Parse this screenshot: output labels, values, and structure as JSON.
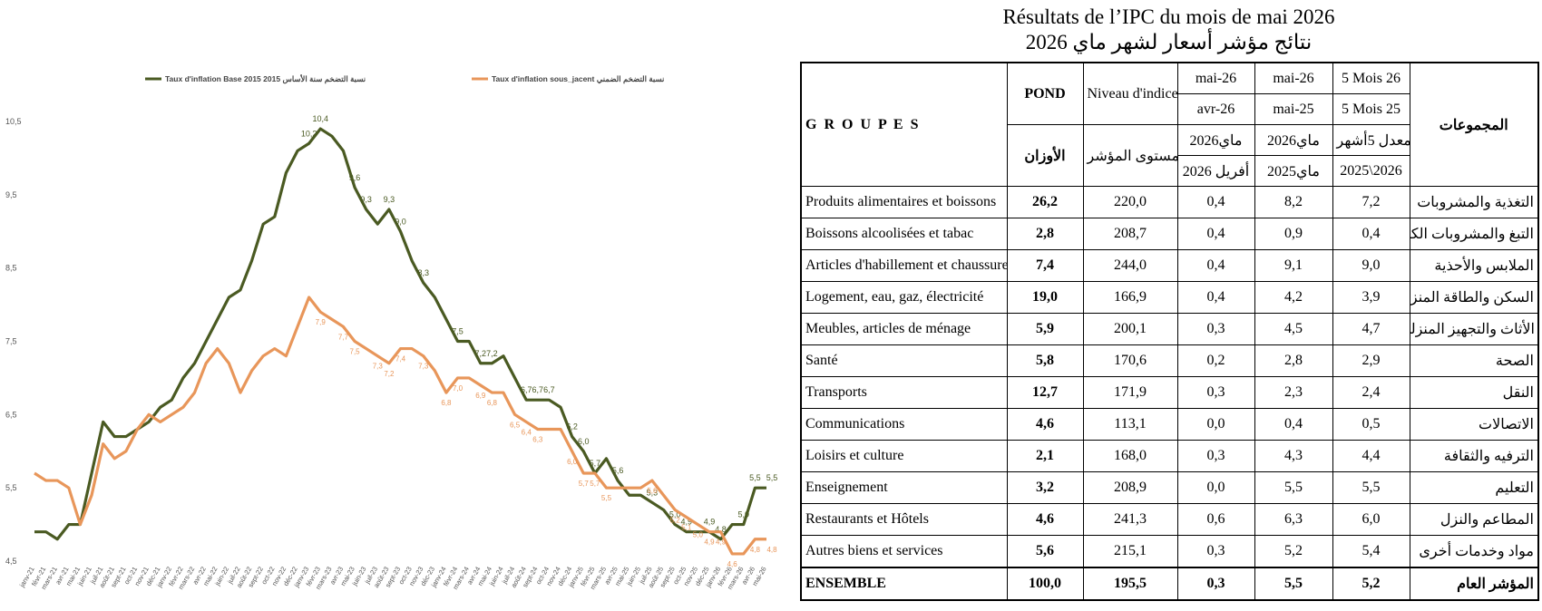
{
  "chart_data": {
    "type": "line",
    "categories": [
      "janv-21",
      "févr-21",
      "mars-21",
      "avr-21",
      "mai-21",
      "juin-21",
      "juil-21",
      "août-21",
      "sept-21",
      "oct-21",
      "nov-21",
      "déc-21",
      "janv-22",
      "févr-22",
      "mars-22",
      "avr-22",
      "mai-22",
      "juin-22",
      "juil-22",
      "août-22",
      "sept-22",
      "oct-22",
      "nov-22",
      "déc-22",
      "janv-23",
      "févr-23",
      "mars-23",
      "avr-23",
      "mai-23",
      "juin-23",
      "juil-23",
      "août-23",
      "sept-23",
      "oct-23",
      "nov-23",
      "déc-23",
      "janv-24",
      "févr-24",
      "mars-24",
      "avr-24",
      "mai-24",
      "juin-24",
      "juil-24",
      "août-24",
      "sept-24",
      "oct-24",
      "nov-24",
      "déc-24",
      "janv-25",
      "févr-25",
      "mars-25",
      "avr-25",
      "mai-25",
      "juin-25",
      "juil-25",
      "août-25",
      "sept-25",
      "oct-25",
      "nov-25",
      "déc-25",
      "janv-26",
      "févr-26",
      "mars-26",
      "avr-26",
      "mai-26"
    ],
    "series": [
      {
        "name": "Taux d'inflation Base 2015 نسبة التضخم سنة الأساس 2015",
        "color": "#4a5a22",
        "values": [
          4.9,
          4.9,
          4.8,
          5.0,
          5.0,
          5.7,
          6.4,
          6.2,
          6.2,
          6.3,
          6.4,
          6.6,
          6.7,
          7.0,
          7.2,
          7.5,
          7.8,
          8.1,
          8.2,
          8.6,
          9.1,
          9.2,
          9.8,
          10.1,
          10.2,
          10.4,
          10.3,
          10.1,
          9.6,
          9.3,
          9.1,
          9.3,
          9.0,
          8.6,
          8.3,
          8.1,
          7.8,
          7.5,
          7.5,
          7.2,
          7.2,
          7.3,
          7.0,
          6.7,
          6.7,
          6.7,
          6.6,
          6.2,
          6.0,
          5.7,
          5.9,
          5.6,
          5.4,
          5.4,
          5.3,
          5.2,
          5.0,
          4.9,
          4.9,
          4.9,
          4.8,
          5.0,
          5.0,
          5.5,
          5.5
        ],
        "value_labels": [
          null,
          null,
          null,
          null,
          null,
          null,
          null,
          null,
          null,
          null,
          null,
          null,
          null,
          null,
          null,
          null,
          null,
          null,
          null,
          null,
          null,
          null,
          null,
          null,
          "10,2",
          "10,4",
          null,
          null,
          "9,6",
          "9,3",
          null,
          "9,3",
          "9,0",
          null,
          "8,3",
          null,
          null,
          "7,5",
          null,
          "7,2",
          "7,2",
          null,
          null,
          "6,7",
          "6,7",
          "6,7",
          null,
          "6,2",
          "6,0",
          "5,7",
          null,
          "5,6",
          null,
          null,
          "5,3",
          null,
          "5,0",
          "4,9",
          null,
          "4,9",
          "4,8",
          null,
          "5,0",
          "5,5",
          "5,5"
        ]
      },
      {
        "name": "Taux d'inflation sous_jacent نسبة التضخم الضمني",
        "color": "#e8965a",
        "values": [
          5.7,
          5.6,
          5.6,
          5.5,
          5.0,
          5.4,
          6.1,
          5.9,
          6.0,
          6.3,
          6.5,
          6.4,
          6.5,
          6.6,
          6.8,
          7.2,
          7.4,
          7.2,
          6.8,
          7.1,
          7.3,
          7.4,
          7.3,
          7.7,
          8.1,
          7.9,
          7.8,
          7.7,
          7.5,
          7.4,
          7.3,
          7.2,
          7.4,
          7.4,
          7.3,
          7.1,
          6.8,
          7.0,
          7.0,
          6.9,
          6.8,
          6.8,
          6.5,
          6.4,
          6.3,
          6.3,
          6.3,
          6.0,
          5.7,
          5.7,
          5.5,
          5.5,
          5.5,
          5.5,
          5.6,
          5.4,
          5.2,
          5.1,
          5.0,
          4.9,
          4.9,
          4.6,
          4.6,
          4.8,
          4.8
        ],
        "value_labels": [
          null,
          null,
          null,
          null,
          null,
          null,
          null,
          null,
          null,
          null,
          null,
          null,
          null,
          null,
          null,
          null,
          null,
          null,
          null,
          null,
          null,
          null,
          null,
          null,
          null,
          "7,9",
          null,
          "7,7",
          "7,5",
          null,
          "7,3",
          "7,2",
          "7,4",
          null,
          "7,3",
          null,
          "6,8",
          "7,0",
          null,
          "6,9",
          "6,8",
          null,
          "6,5",
          "6,4",
          "6,3",
          null,
          null,
          "6,0",
          "5,7",
          "5,7",
          "5,5",
          null,
          null,
          null,
          "5,6",
          null,
          "5,2",
          "5,1",
          "5,0",
          "4,9",
          "4,9",
          "4,6",
          null,
          "4,8",
          "4,8"
        ]
      }
    ],
    "ylim": [
      4.5,
      10.5
    ],
    "yticks": [
      {
        "value": 4.5,
        "label": "4,5"
      },
      {
        "value": 5.5,
        "label": "5,5"
      },
      {
        "value": 6.5,
        "label": "6,5"
      },
      {
        "value": 7.5,
        "label": "7,5"
      },
      {
        "value": 8.5,
        "label": "8,5"
      },
      {
        "value": 9.5,
        "label": "9,5"
      },
      {
        "value": 10.5,
        "label": "10,5"
      }
    ],
    "grid": false
  },
  "table": {
    "title": "Résultats de l’IPC du mois de mai 2026",
    "subtitle": "نتائج مؤشر أسعار لشهر ماي 2026",
    "header": {
      "groupes": "G R O U P E S",
      "pond": "POND",
      "pond_ar": "الأوزان",
      "niveau": "Niveau d'indice",
      "niveau_ar": "مستوى المؤشر",
      "m": [
        "mai-26",
        "avr-26",
        "ماي2026",
        "أفريل 2026"
      ],
      "y": [
        "mai-26",
        "mai-25",
        "ماي2026",
        "ماي2025"
      ],
      "c": [
        "5 Mois 26",
        "5 Mois 25",
        "معدل 5أشهر",
        "2025\\2026"
      ],
      "groupes_ar": "المجموعات"
    },
    "rows": [
      [
        "Produits alimentaires et boissons",
        "26,2",
        "220,0",
        "0,4",
        "8,2",
        "7,2",
        "التغذية والمشروبات"
      ],
      [
        "Boissons alcoolisées et tabac",
        "2,8",
        "208,7",
        "0,4",
        "0,9",
        "0,4",
        "التبغ والمشروبات الكحولية"
      ],
      [
        "Articles d'habillement et chaussures",
        "7,4",
        "244,0",
        "0,4",
        "9,1",
        "9,0",
        "الملابس والأحذية"
      ],
      [
        "Logement, eau, gaz, électricité",
        "19,0",
        "166,9",
        "0,4",
        "4,2",
        "3,9",
        "السكن والطاقة المنزلية"
      ],
      [
        "Meubles, articles de ménage",
        "5,9",
        "200,1",
        "0,3",
        "4,5",
        "4,7",
        "الأثاث والتجهيز المنزلي"
      ],
      [
        "Santé",
        "5,8",
        "170,6",
        "0,2",
        "2,8",
        "2,9",
        "الصحة"
      ],
      [
        "Transports",
        "12,7",
        "171,9",
        "0,3",
        "2,3",
        "2,4",
        "النقل"
      ],
      [
        "Communications",
        "4,6",
        "113,1",
        "0,0",
        "0,4",
        "0,5",
        "الاتصالات"
      ],
      [
        "Loisirs et culture",
        "2,1",
        "168,0",
        "0,3",
        "4,3",
        "4,4",
        "الترفيه والثقافة"
      ],
      [
        "Enseignement",
        "3,2",
        "208,9",
        "0,0",
        "5,5",
        "5,5",
        "التعليم"
      ],
      [
        "Restaurants et Hôtels",
        "4,6",
        "241,3",
        "0,6",
        "6,3",
        "6,0",
        "المطاعم والنزل"
      ],
      [
        "Autres biens et services",
        "5,6",
        "215,1",
        "0,3",
        "5,2",
        "5,4",
        "مواد وخدمات أخرى"
      ],
      [
        "ENSEMBLE",
        "100,0",
        "195,5",
        "0,3",
        "5,5",
        "5,2",
        "المؤشر العام"
      ]
    ]
  }
}
